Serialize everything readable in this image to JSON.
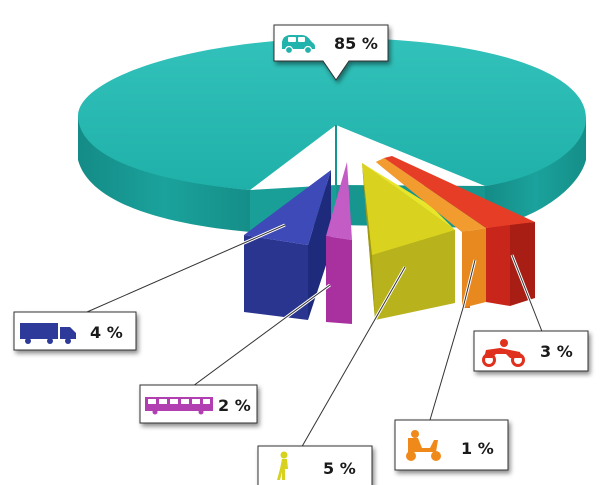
{
  "chart_data": {
    "type": "pie",
    "title": "",
    "slices": [
      {
        "category": "car",
        "icon": "car-icon",
        "value": 85,
        "label": "85 %",
        "color": "#22b3ad"
      },
      {
        "category": "truck",
        "icon": "truck-icon",
        "value": 4,
        "label": "4 %",
        "color": "#2e3a9a"
      },
      {
        "category": "bus",
        "icon": "bus-icon",
        "value": 2,
        "label": "2 %",
        "color": "#b13fb1"
      },
      {
        "category": "pedestrian",
        "icon": "pedestrian-icon",
        "value": 5,
        "label": "5 %",
        "color": "#d6d21f"
      },
      {
        "category": "scooter",
        "icon": "scooter-icon",
        "value": 1,
        "label": "1 %",
        "color": "#ef8a1a"
      },
      {
        "category": "motorcycle",
        "icon": "motorcycle-icon",
        "value": 3,
        "label": "3 %",
        "color": "#e0301e"
      }
    ],
    "legend": "none",
    "grid": false,
    "style": "3d-exploded-pie"
  }
}
